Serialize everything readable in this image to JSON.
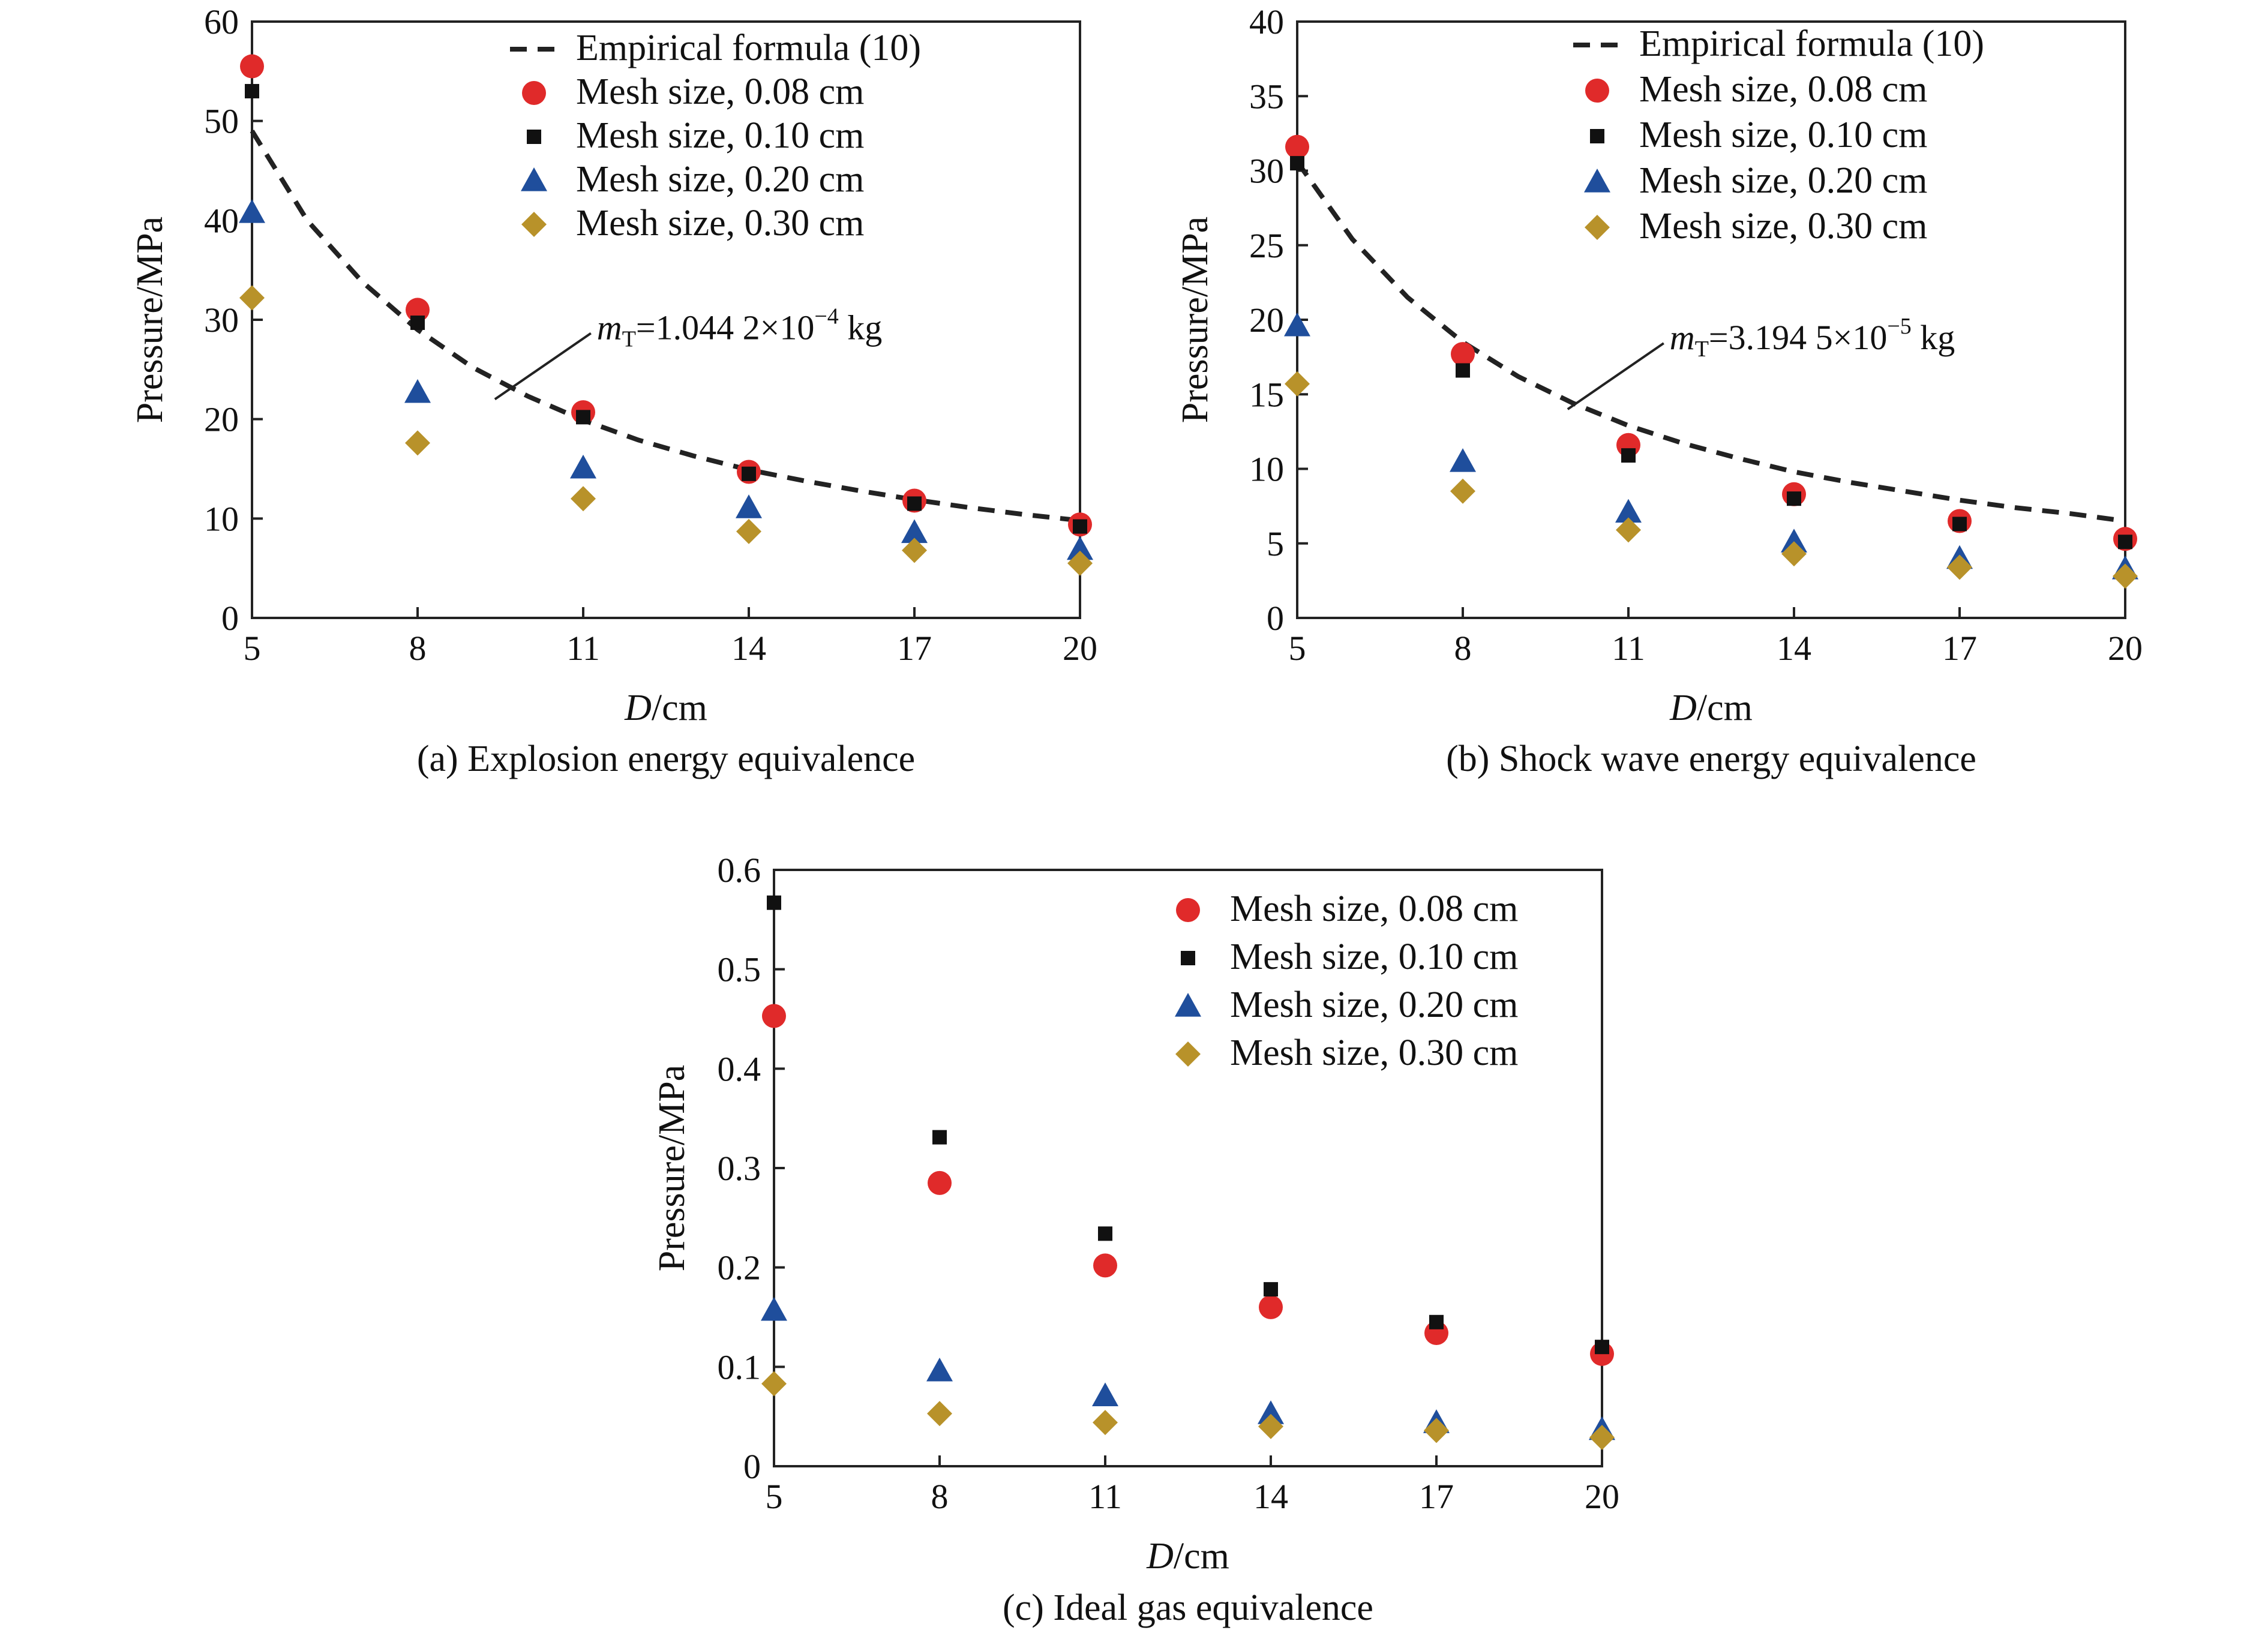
{
  "chart_data": [
    {
      "id": "a",
      "type": "scatter",
      "caption": "(a) Explosion energy equivalence",
      "xlabel_italic": "D",
      "xlabel_rest": "/cm",
      "ylabel": "Pressure/MPa",
      "xlim": [
        5,
        20
      ],
      "ylim": [
        0,
        60
      ],
      "xticks": [
        5,
        8,
        11,
        14,
        17,
        20
      ],
      "yticks": [
        0,
        10,
        20,
        30,
        40,
        50,
        60
      ],
      "legend_position": "top-right",
      "curve": {
        "name": "Empirical formula (10)",
        "x": [
          5,
          6,
          7,
          8,
          9,
          10,
          11,
          12,
          13,
          14,
          15,
          16,
          17,
          18,
          19,
          20
        ],
        "y": [
          49.0,
          40.0,
          33.8,
          29.0,
          25.2,
          22.3,
          19.9,
          17.9,
          16.3,
          14.9,
          13.8,
          12.8,
          11.9,
          11.1,
          10.4,
          9.8
        ]
      },
      "annotation": {
        "prefix": "m",
        "sub": "T",
        "mid": "=1.044 2×10",
        "sup": "−4",
        "suffix": " kg",
        "x": 9.4,
        "y": 22
      },
      "x": [
        5,
        8,
        11,
        14,
        17,
        20
      ],
      "series": [
        {
          "name": "Mesh size, 0.08 cm",
          "marker": "circle",
          "color": "#e02a2a",
          "values": [
            55.5,
            31.0,
            20.7,
            14.7,
            11.8,
            9.4
          ]
        },
        {
          "name": "Mesh size, 0.10 cm",
          "marker": "square",
          "color": "#111111",
          "values": [
            53.0,
            29.7,
            20.2,
            14.5,
            11.5,
            9.2
          ]
        },
        {
          "name": "Mesh size, 0.20 cm",
          "marker": "triangle",
          "color": "#1f4e9c",
          "values": [
            40.8,
            22.7,
            15.1,
            11.1,
            8.6,
            6.9
          ]
        },
        {
          "name": "Mesh size, 0.30 cm",
          "marker": "diamond",
          "color": "#b8922a",
          "values": [
            32.2,
            17.6,
            12.0,
            8.7,
            6.8,
            5.5
          ]
        }
      ]
    },
    {
      "id": "b",
      "type": "scatter",
      "caption": "(b) Shock wave energy equivalence",
      "xlabel_italic": "D",
      "xlabel_rest": "/cm",
      "ylabel": "Pressure/MPa",
      "xlim": [
        5,
        20
      ],
      "ylim": [
        0,
        40
      ],
      "xticks": [
        5,
        8,
        11,
        14,
        17,
        20
      ],
      "yticks": [
        0,
        5,
        10,
        15,
        20,
        25,
        30,
        35,
        40
      ],
      "legend_position": "top-right",
      "curve": {
        "name": "Empirical formula (10)",
        "x": [
          5,
          6,
          7,
          8,
          9,
          10,
          11,
          12,
          13,
          14,
          15,
          16,
          17,
          18,
          19,
          20
        ],
        "y": [
          30.6,
          25.4,
          21.5,
          18.5,
          16.2,
          14.4,
          12.9,
          11.7,
          10.7,
          9.8,
          9.1,
          8.5,
          7.9,
          7.4,
          7.0,
          6.5
        ]
      },
      "annotation": {
        "prefix": "m",
        "sub": "T",
        "mid": "=3.194 5×10",
        "sup": "−5",
        "suffix": " kg",
        "x": 9.9,
        "y": 14
      },
      "x": [
        5,
        8,
        11,
        14,
        17,
        20
      ],
      "series": [
        {
          "name": "Mesh size, 0.08 cm",
          "marker": "circle",
          "color": "#e02a2a",
          "values": [
            31.6,
            17.7,
            11.6,
            8.3,
            6.5,
            5.3
          ]
        },
        {
          "name": "Mesh size, 0.10 cm",
          "marker": "square",
          "color": "#111111",
          "values": [
            30.5,
            16.6,
            10.9,
            8.0,
            6.3,
            5.1
          ]
        },
        {
          "name": "Mesh size, 0.20 cm",
          "marker": "triangle",
          "color": "#1f4e9c",
          "values": [
            19.6,
            10.5,
            7.1,
            5.1,
            4.0,
            3.3
          ]
        },
        {
          "name": "Mesh size, 0.30 cm",
          "marker": "diamond",
          "color": "#b8922a",
          "values": [
            15.7,
            8.5,
            5.9,
            4.3,
            3.4,
            2.8
          ]
        }
      ]
    },
    {
      "id": "c",
      "type": "scatter",
      "caption": "(c) Ideal gas equivalence",
      "xlabel_italic": "D",
      "xlabel_rest": "/cm",
      "ylabel": "Pressure/MPa",
      "xlim": [
        5,
        20
      ],
      "ylim": [
        0,
        0.6
      ],
      "xticks": [
        5,
        8,
        11,
        14,
        17,
        20
      ],
      "yticks": [
        0,
        0.1,
        0.2,
        0.3,
        0.4,
        0.5,
        0.6
      ],
      "legend_position": "top-right",
      "x": [
        5,
        8,
        11,
        14,
        17,
        20
      ],
      "series": [
        {
          "name": "Mesh size, 0.08 cm",
          "marker": "circle",
          "color": "#e02a2a",
          "values": [
            0.453,
            0.285,
            0.202,
            0.16,
            0.134,
            0.113
          ]
        },
        {
          "name": "Mesh size, 0.10 cm",
          "marker": "square",
          "color": "#111111",
          "values": [
            0.567,
            0.331,
            0.234,
            0.178,
            0.145,
            0.12
          ]
        },
        {
          "name": "Mesh size, 0.20 cm",
          "marker": "triangle",
          "color": "#1f4e9c",
          "values": [
            0.157,
            0.096,
            0.071,
            0.053,
            0.044,
            0.037
          ]
        },
        {
          "name": "Mesh size, 0.30 cm",
          "marker": "diamond",
          "color": "#b8922a",
          "values": [
            0.083,
            0.053,
            0.044,
            0.04,
            0.036,
            0.029
          ]
        }
      ]
    }
  ]
}
